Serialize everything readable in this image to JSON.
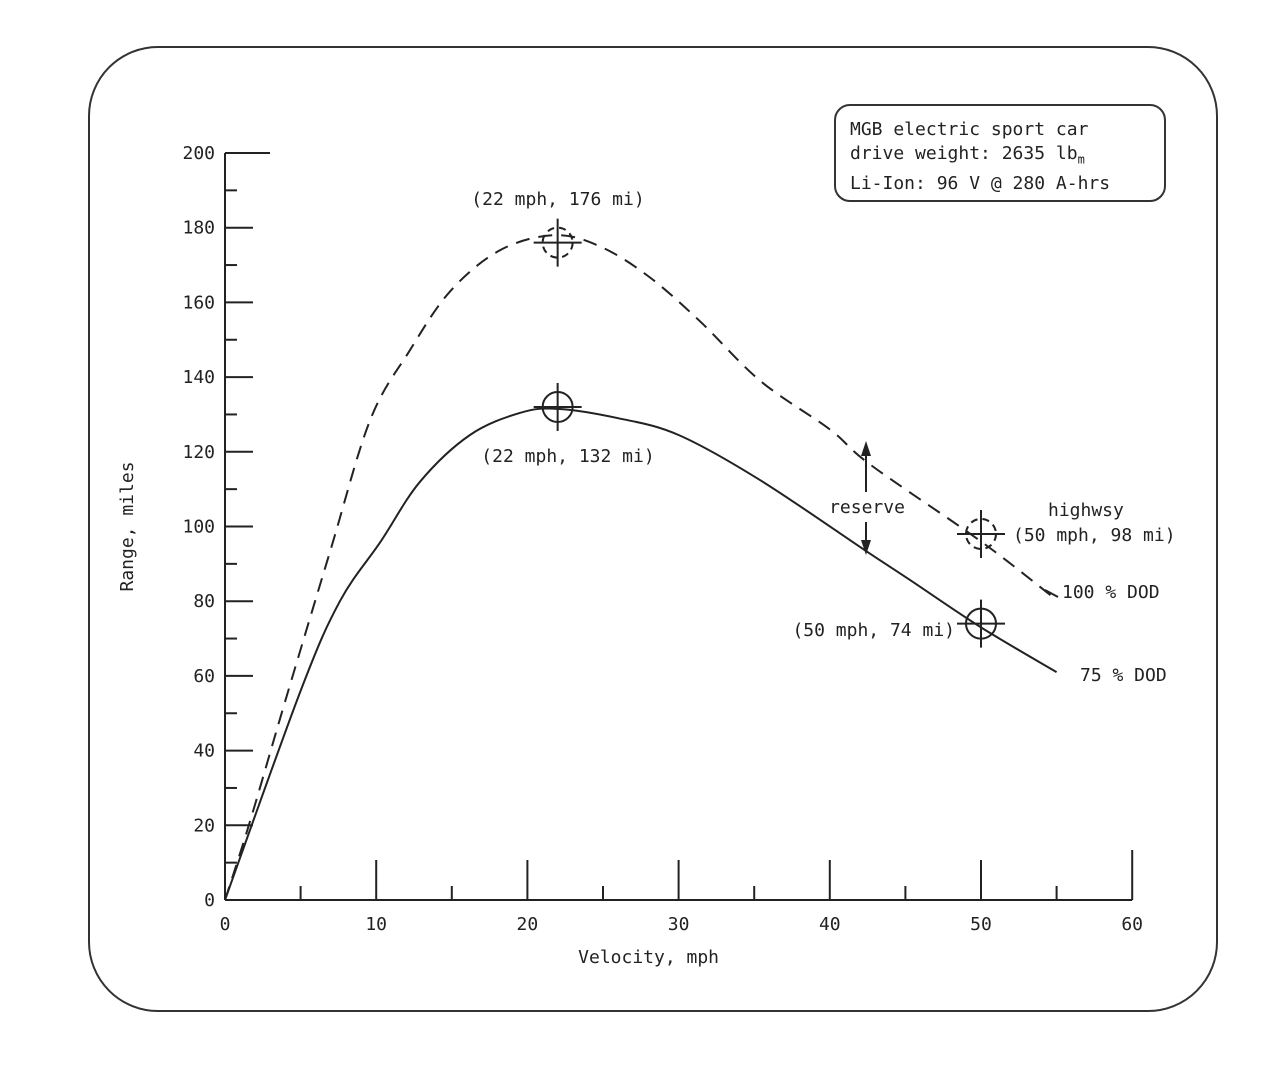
{
  "chart_data": {
    "type": "line",
    "title": "",
    "xlabel": "Velocity, mph",
    "ylabel": "Range, miles",
    "xlim": [
      0,
      60
    ],
    "ylim": [
      0,
      200
    ],
    "xticks": [
      "0",
      "10",
      "20",
      "30",
      "40",
      "50",
      "60"
    ],
    "yticks": [
      "0",
      "20",
      "40",
      "60",
      "80",
      "100",
      "120",
      "140",
      "160",
      "180",
      "200"
    ],
    "grid": false,
    "info_box": {
      "line1": "MGB electric sport car",
      "line2_prefix": "drive weight: 2635 lb",
      "line2_sub": "m",
      "line3": "Li-Ion: 96 V @ 280 A-hrs"
    },
    "series": [
      {
        "name": "100 % DOD",
        "style": "dashed",
        "x": [
          0,
          1.65,
          4,
          7,
          9.6,
          12.2,
          14.9,
          18.2,
          21.8,
          24.8,
          28,
          31.4,
          35.4,
          40,
          42.7,
          50,
          54.6
        ],
        "y": [
          0,
          21,
          53.5,
          94,
          128.5,
          147,
          163,
          174,
          178,
          175,
          167,
          155,
          139,
          126,
          116.5,
          96,
          81.6
        ]
      },
      {
        "name": "75 % DOD",
        "style": "solid",
        "x": [
          0,
          5,
          7.6,
          10.3,
          12.9,
          16.2,
          19.5,
          22,
          26,
          30,
          35.4,
          42.3,
          45.3,
          50,
          55
        ],
        "y": [
          0,
          56,
          80,
          96,
          112,
          124.5,
          130.4,
          131.5,
          129,
          124.5,
          112.4,
          93.7,
          85.7,
          73,
          61
        ]
      }
    ],
    "annotations": [
      {
        "text": "(22 mph, 176 mi)",
        "x": 22,
        "y": 176,
        "marker": "dashed-crosshair"
      },
      {
        "text": "(22 mph, 132 mi)",
        "x": 22,
        "y": 132,
        "marker": "crosshair"
      },
      {
        "text": "(50 mph, 98 mi)",
        "x": 50,
        "y": 98,
        "marker": "dashed-crosshair"
      },
      {
        "text": "(50 mph, 74 mi)",
        "x": 50,
        "y": 74,
        "marker": "crosshair"
      },
      {
        "text": "highwsy"
      },
      {
        "text": "reserve"
      }
    ]
  }
}
